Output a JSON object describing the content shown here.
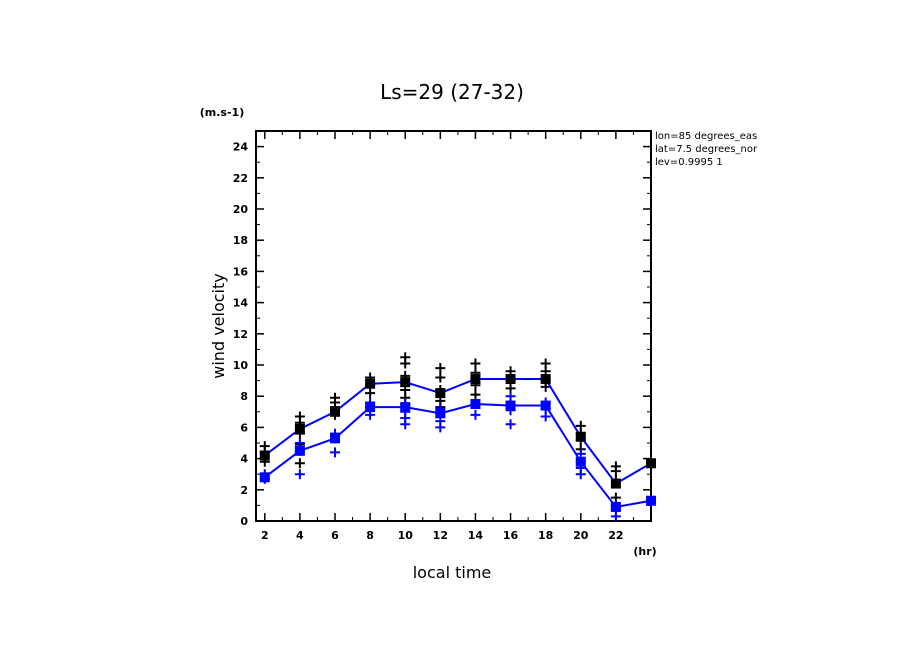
{
  "chart_data": {
    "type": "line",
    "title": "Ls=29 (27-32)",
    "xlabel": "local time",
    "ylabel": "wind velocity",
    "y_units": "(m.s-1)",
    "x_units": "(hr)",
    "xlim": [
      1.5,
      24
    ],
    "ylim": [
      0,
      25
    ],
    "x_ticks": [
      2,
      4,
      6,
      8,
      10,
      12,
      14,
      16,
      18,
      20,
      22
    ],
    "y_ticks": [
      0,
      2,
      4,
      6,
      8,
      10,
      12,
      14,
      16,
      18,
      20,
      22,
      24
    ],
    "annotations": [
      "lon=85 degrees_eas",
      "lat=7.5 degrees_nor",
      "lev=0.9995 1"
    ],
    "x": [
      2,
      4,
      6,
      8,
      10,
      12,
      14,
      16,
      18,
      20,
      22,
      24
    ],
    "series": [
      {
        "name": "black-mean",
        "color": "#0000ff",
        "marker_color": "#000000",
        "values": [
          4.2,
          5.9,
          7.0,
          8.8,
          8.9,
          8.2,
          9.1,
          9.1,
          9.1,
          5.4,
          2.4,
          3.7
        ],
        "scatter": [
          [
            3.8,
            4.4,
            4.8
          ],
          [
            3.7,
            4.9,
            5.6,
            6.3,
            6.7
          ],
          [
            6.8,
            7.3,
            7.6,
            7.9
          ],
          [
            8.2,
            8.7,
            9.2
          ],
          [
            7.9,
            8.4,
            9.3,
            10.1,
            10.5
          ],
          [
            7.3,
            7.7,
            8.4,
            9.2,
            9.8
          ],
          [
            8.1,
            8.7,
            9.5,
            10.1
          ],
          [
            8.5,
            9.1,
            9.6
          ],
          [
            8.6,
            9.0,
            9.6,
            10.1
          ],
          [
            4.6,
            5.2,
            5.6,
            6.1
          ],
          [
            1.5,
            2.6,
            3.2,
            3.5
          ],
          [
            3.7,
            3.9
          ]
        ]
      },
      {
        "name": "blue-mean",
        "color": "#0000ff",
        "marker_color": "#0000ff",
        "values": [
          2.8,
          4.5,
          5.3,
          7.3,
          7.3,
          6.9,
          7.5,
          7.4,
          7.4,
          3.8,
          0.9,
          1.3
        ],
        "scatter": [
          [
            2.7,
            3.0
          ],
          [
            3.0,
            4.5,
            5.0
          ],
          [
            4.4,
            5.3,
            5.6
          ],
          [
            6.8,
            7.3,
            7.6
          ],
          [
            6.2,
            6.6,
            7.0,
            7.5
          ],
          [
            6.0,
            6.4,
            6.9,
            7.2
          ],
          [
            6.8,
            7.5
          ],
          [
            6.2,
            7.1,
            7.5,
            8.0
          ],
          [
            6.7,
            7.2,
            7.6
          ],
          [
            3.0,
            3.4,
            3.8,
            4.3
          ],
          [
            0.3,
            0.7,
            1.0
          ],
          [
            1.3
          ]
        ]
      }
    ]
  }
}
